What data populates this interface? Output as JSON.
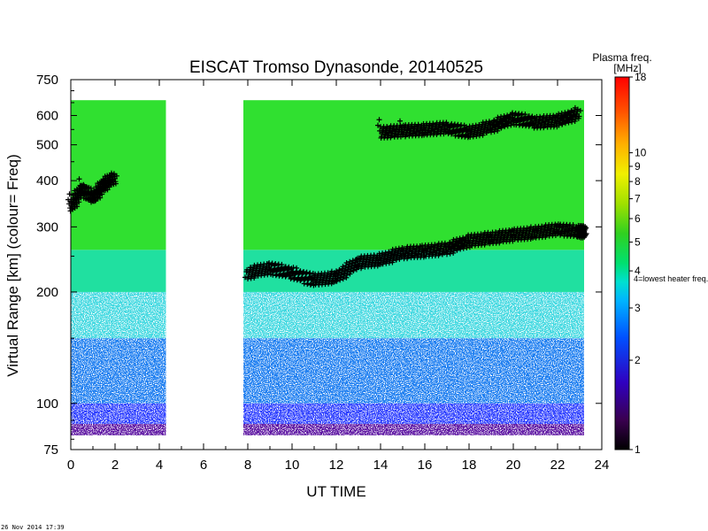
{
  "chart_data": {
    "type": "heatmap",
    "title": "EISCAT Tromso Dynasonde,   20140525",
    "xlabel": "UT TIME",
    "ylabel": "Virtual Range [km]    (colour= Freq)",
    "xlim": [
      0,
      24
    ],
    "ylim": [
      75,
      750
    ],
    "y_scale": "log",
    "x_ticks": [
      "0",
      "2",
      "4",
      "6",
      "8",
      "10",
      "12",
      "14",
      "16",
      "18",
      "20",
      "22",
      "24"
    ],
    "y_ticks": [
      "75",
      "100",
      "200",
      "300",
      "400",
      "500",
      "600",
      "750"
    ],
    "data_gaps": [
      [
        4.3,
        7.8
      ]
    ],
    "range_limits_km": [
      82,
      660
    ],
    "colorbar": {
      "title": "Plasma freq.",
      "unit": "[MHz]",
      "range": [
        1,
        18
      ],
      "scale": "log",
      "ticks": [
        "1",
        "2",
        "3",
        "4",
        "5",
        "6",
        "7",
        "8",
        "9",
        "10",
        "18"
      ],
      "marker_label": "4=lowest heater freq."
    },
    "series": [
      {
        "name": "plus-marked upper trace",
        "x": [
          0,
          0.5,
          1.0,
          1.5,
          2.0,
          8,
          9,
          10,
          11,
          12,
          13,
          14,
          15,
          16,
          17,
          18,
          19,
          20,
          21,
          22,
          23,
          23.2
        ],
        "y": [
          340,
          380,
          360,
          390,
          410,
          225,
          232,
          225,
          215,
          220,
          240,
          245,
          255,
          258,
          262,
          275,
          280,
          285,
          290,
          295,
          292,
          290
        ]
      },
      {
        "name": "plus-marked top trace",
        "x": [
          14,
          15,
          16,
          17,
          18,
          19,
          20,
          21,
          22,
          23
        ],
        "y": [
          540,
          545,
          550,
          555,
          540,
          560,
          590,
          575,
          580,
          610
        ]
      }
    ]
  },
  "footer_timestamp": "26 Nov 2014 17:39"
}
